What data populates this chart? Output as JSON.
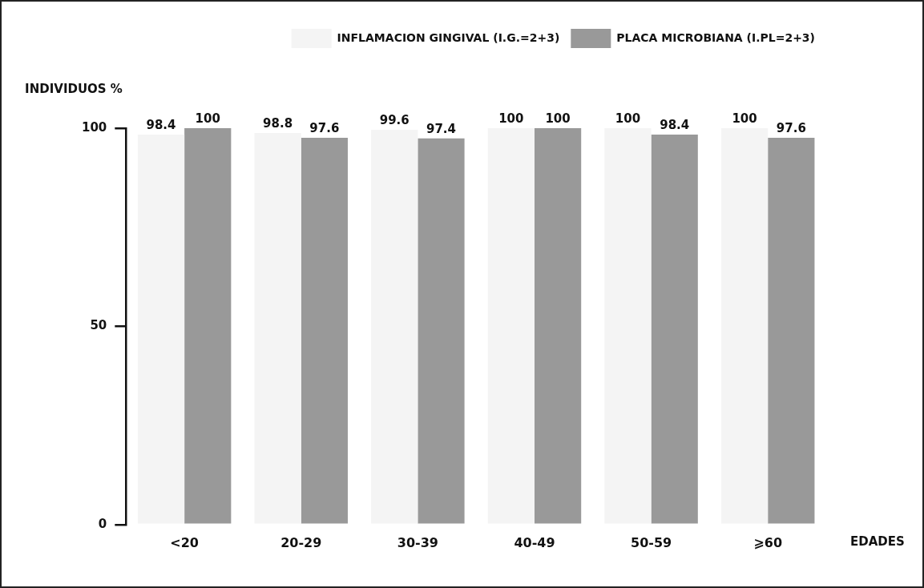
{
  "chart_data": {
    "type": "bar",
    "ylabel": "INDIVIDUOS %",
    "xlabel": "EDADES",
    "categories": [
      "<20",
      "20-29",
      "30-39",
      "40-49",
      "50-59",
      "⩾60"
    ],
    "series": [
      {
        "name": "INFLAMACION GINGIVAL (I.G.=2+3)",
        "color": "#f4f4f4",
        "values": [
          98.4,
          98.8,
          99.6,
          100,
          100,
          100
        ]
      },
      {
        "name": "PLACA MICROBIANA (I.PL=2+3)",
        "color": "#999999",
        "values": [
          100,
          97.6,
          97.4,
          100,
          98.4,
          97.6
        ]
      }
    ],
    "ylim": [
      0,
      100
    ],
    "yticks": [
      0,
      50,
      100
    ],
    "grid": false,
    "legend": "top right",
    "data_labels": true
  }
}
